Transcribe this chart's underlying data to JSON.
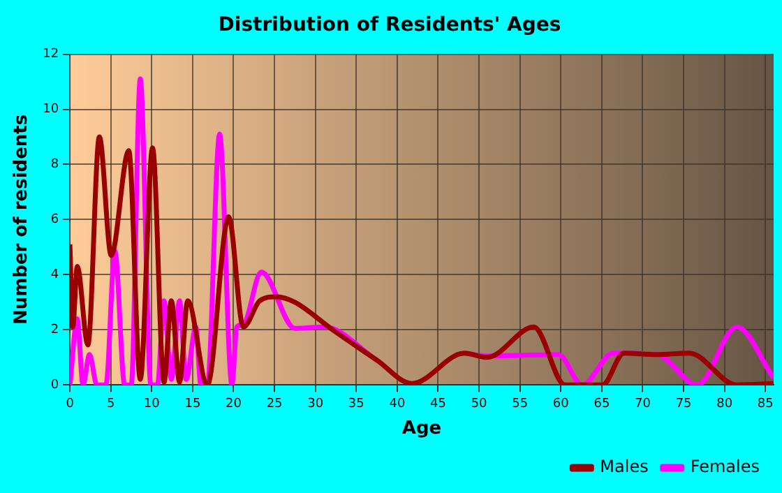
{
  "chart_data": {
    "type": "line",
    "title": "Distribution of Residents' Ages",
    "xlabel": "Age",
    "ylabel": "Number of residents",
    "xlim": [
      0,
      86
    ],
    "xticks": [
      0,
      5,
      10,
      15,
      20,
      25,
      30,
      35,
      40,
      45,
      50,
      55,
      60,
      65,
      70,
      75,
      80,
      85
    ],
    "ylim": [
      0,
      12
    ],
    "yticks": [
      0,
      2,
      4,
      6,
      8,
      10,
      12
    ],
    "grid": true,
    "legend": "bottom right",
    "marker": "none",
    "line_style": "solid",
    "series": [
      {
        "name": "Males",
        "color": "#990000",
        "x": [
          0,
          0.35,
          0.9,
          2.2,
          3.6,
          5.05,
          7.2,
          8.6,
          10.1,
          11.5,
          12.4,
          13.4,
          14.4,
          16.8,
          19.4,
          21.2,
          23.2,
          25.2,
          27.5,
          32.1,
          37.5,
          41.8,
          48.2,
          51,
          56.7,
          60.5,
          65.1,
          67.7,
          71.7,
          75.7,
          81.5,
          86
        ],
        "values": [
          5.1,
          2.1,
          4.3,
          1.45,
          9,
          4.7,
          8.5,
          0.2,
          8.6,
          0.1,
          3.05,
          0.1,
          3.05,
          0,
          6.1,
          2.1,
          3.05,
          3.2,
          3,
          2,
          0.9,
          0.05,
          1.15,
          1,
          2.1,
          0,
          0,
          1.15,
          1.1,
          1.15,
          0,
          0.05
        ]
      },
      {
        "name": "Females",
        "color": "#ff00ff",
        "x": [
          0,
          0.9,
          1.6,
          2.4,
          3.3,
          4.4,
          5.5,
          6.7,
          7.5,
          8.6,
          9.9,
          10.7,
          11.5,
          12.4,
          13.4,
          14.2,
          15.4,
          16,
          16.8,
          18.3,
          19.8,
          20.4,
          21.2,
          23.4,
          27.5,
          31.1,
          37.5,
          41.8,
          48.2,
          51,
          59.7,
          62.6,
          66.4,
          71.7,
          76.7,
          81.5,
          86
        ],
        "values": [
          0,
          2.4,
          0,
          1.1,
          0,
          0,
          4.85,
          0,
          0,
          11.1,
          0,
          0,
          3.05,
          0.2,
          3.05,
          0.2,
          2.1,
          0,
          0,
          9.1,
          0,
          2.1,
          2.2,
          4.1,
          2.05,
          2.1,
          0.9,
          null,
          1.15,
          1.05,
          1.1,
          0,
          1.15,
          1.1,
          0,
          2.1,
          0.25
        ]
      }
    ]
  }
}
